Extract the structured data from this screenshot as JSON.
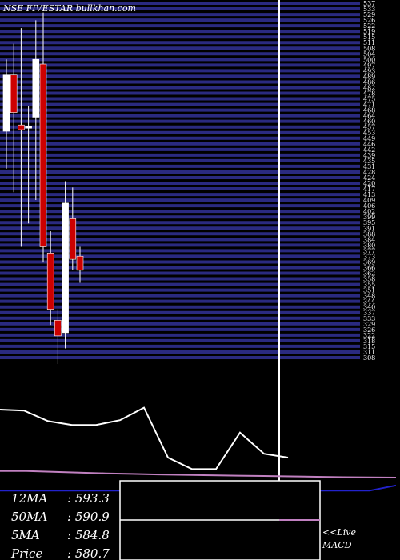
{
  "header": {
    "watermark": "NSE FIVESTAR bullkhan.com"
  },
  "chart_data": {
    "type": "candlestick",
    "price_axis_ticks": [
      "537",
      "533",
      "529",
      "526",
      "522",
      "519",
      "515",
      "511",
      "508",
      "504",
      "500",
      "497",
      "493",
      "489",
      "486",
      "482",
      "478",
      "475",
      "471",
      "468",
      "464",
      "460",
      "457",
      "453",
      "449",
      "446",
      "442",
      "439",
      "435",
      "431",
      "428",
      "424",
      "420",
      "417",
      "413",
      "409",
      "406",
      "402",
      "399",
      "395",
      "391",
      "388",
      "384",
      "380",
      "377",
      "373",
      "369",
      "366",
      "362",
      "358",
      "355",
      "351",
      "348",
      "344",
      "340",
      "337",
      "333",
      "329",
      "326",
      "322",
      "318",
      "315",
      "311",
      "308"
    ],
    "price_range": [
      305,
      538
    ],
    "candles": [
      {
        "open": 490,
        "close": 454,
        "high": 500,
        "low": 430,
        "color": "white"
      },
      {
        "open": 490,
        "close": 466,
        "high": 510,
        "low": 415,
        "color": "red"
      },
      {
        "open": 458,
        "close": 455,
        "high": 520,
        "low": 380,
        "color": "red"
      },
      {
        "open": 457,
        "close": 457,
        "high": 470,
        "low": 395,
        "color": "white"
      },
      {
        "open": 463,
        "close": 500,
        "high": 525,
        "low": 410,
        "color": "white"
      },
      {
        "open": 497,
        "close": 380,
        "high": 530,
        "low": 370,
        "color": "red"
      },
      {
        "open": 376,
        "close": 340,
        "high": 390,
        "low": 330,
        "color": "red"
      },
      {
        "open": 333,
        "close": 323,
        "high": 340,
        "low": 305,
        "color": "red"
      },
      {
        "open": 325,
        "close": 408,
        "high": 422,
        "low": 315,
        "color": "white"
      },
      {
        "open": 398,
        "close": 372,
        "high": 418,
        "low": 365,
        "color": "red"
      },
      {
        "open": 374,
        "close": 365,
        "high": 380,
        "low": 357,
        "color": "red"
      }
    ],
    "macd_line": [
      0.0,
      -0.05,
      -0.6,
      -0.8,
      -0.8,
      -0.55,
      0.1,
      -2.5,
      -3.1,
      -3.1,
      -1.2,
      -2.3,
      -2.5
    ],
    "signal_line": [
      -3.2,
      -3.2,
      -3.24,
      -3.28,
      -3.32,
      -3.35,
      -3.38,
      -3.4,
      -3.42,
      -3.44,
      -3.46,
      -3.48,
      -3.5,
      -3.52,
      -3.53,
      -3.54
    ],
    "signal_zero_line": [
      -3.72,
      -3.72,
      -3.72,
      -3.72,
      -3.72,
      -3.72,
      -3.72,
      -3.72,
      -3.72,
      -3.72,
      -3.72,
      -3.72,
      -3.72,
      -3.72,
      -3.72,
      -3.45
    ],
    "macd_label": "MACD",
    "colors": {
      "up": "#ffffff",
      "down": "#cc0000",
      "grid": "#2a2a80",
      "macd": "#ffffff",
      "signal": "#c080c0",
      "zero": "#2222cc"
    }
  },
  "moving_averages": [
    {
      "key": "12MA",
      "value": "593.3"
    },
    {
      "key": "50MA",
      "value": "590.9"
    },
    {
      "key": "5MA",
      "value": "584.8"
    },
    {
      "key": "Price",
      "value": "580.7"
    }
  ],
  "live_label": "<<Live"
}
